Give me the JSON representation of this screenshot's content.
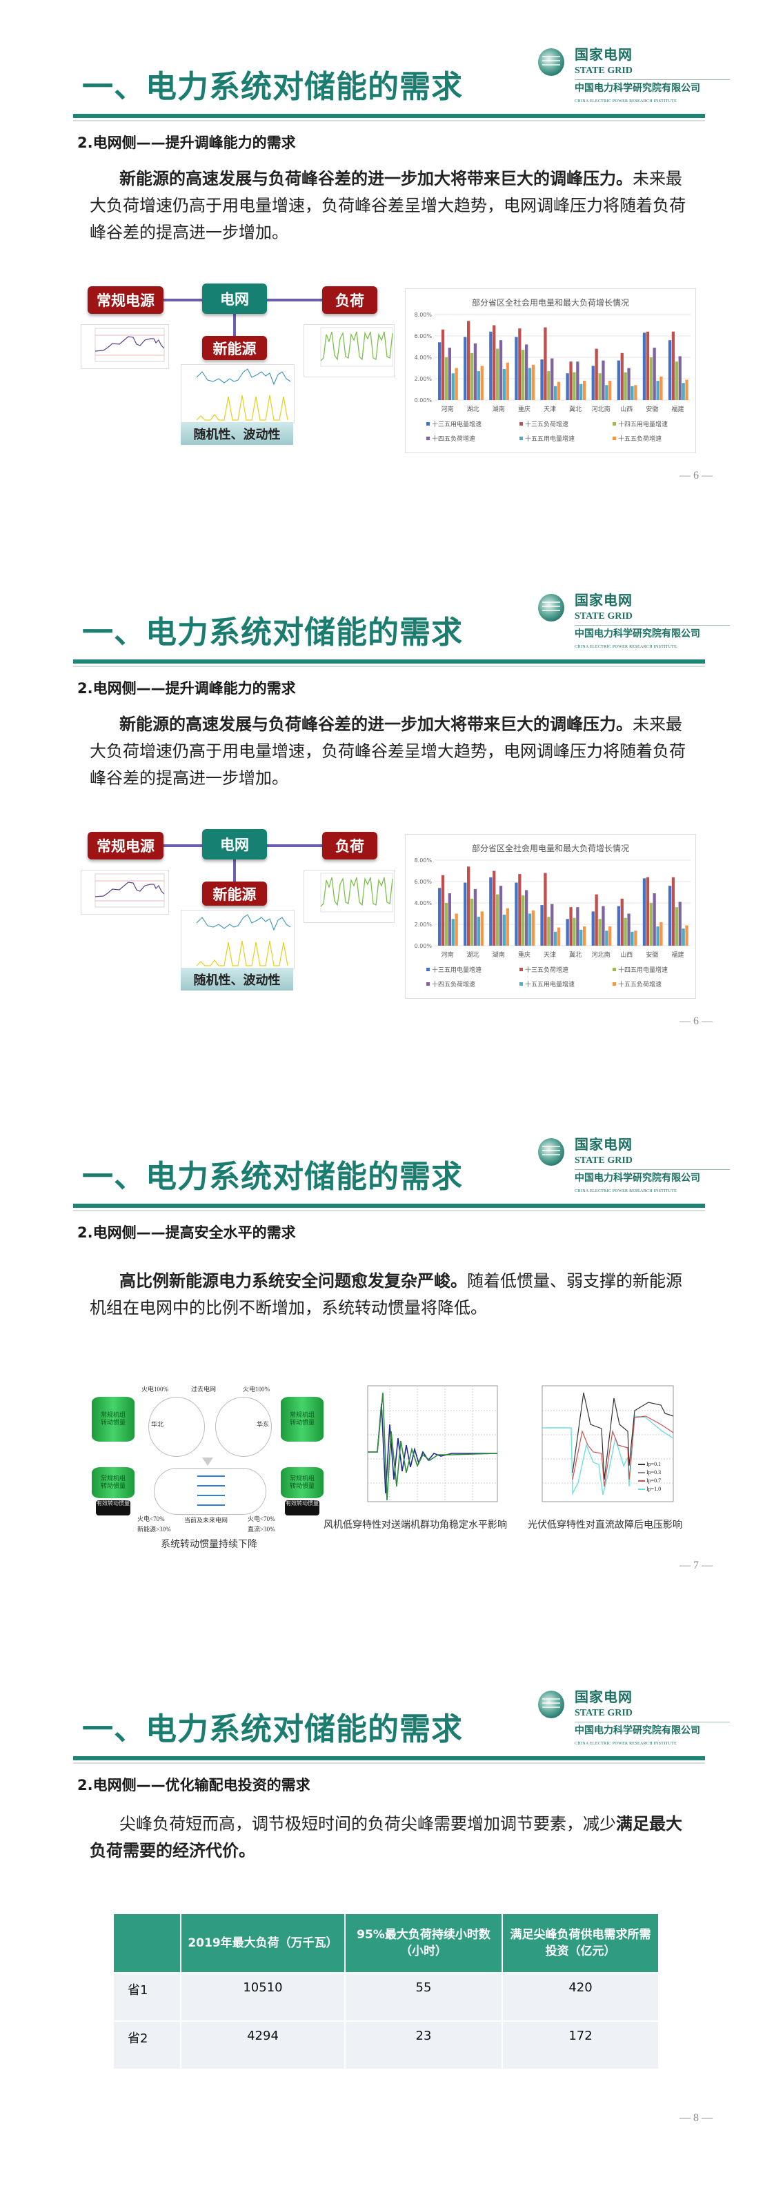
{
  "header": {
    "logo_cn": "国家电网",
    "logo_en": "STATE GRID",
    "institute_cn": "中国电力科学研究院有限公司",
    "institute_en": "CHINA ELECTRIC POWER RESEARCH INSTITUTE",
    "title": "一、电力系统对储能的需求"
  },
  "slides": [
    {
      "subtitle": "2.电网侧——提升调峰能力的需求",
      "para_bold": "新能源的高速发展与负荷峰谷差的进一步加大将带来巨大的调峰压力。",
      "para_rest": "未来最大负荷增速仍高于用电量增速，负荷峰谷差呈增大趋势，电网调峰压力将随着负荷峰谷差的提高进一步增加。",
      "page": "— 6 —"
    },
    {
      "subtitle": "2.电网侧——提升调峰能力的需求",
      "para_bold": "新能源的高速发展与负荷峰谷差的进一步加大将带来巨大的调峰压力。",
      "para_rest": "未来最大负荷增速仍高于用电量增速，负荷峰谷差呈增大趋势，电网调峰压力将随着负荷峰谷差的提高进一步增加。",
      "page": "— 6 —"
    },
    {
      "subtitle": "2.电网侧——提高安全水平的需求",
      "para_bold": "高比例新能源电力系统安全问题愈发复杂严峻。",
      "para_rest": "随着低惯量、弱支撑的新能源机组在电网中的比例不断增加，系统转动惯量将降低。",
      "page": "— 7 —",
      "figures": {
        "inertia": {
          "caption": "系统转动惯量持续下降",
          "thermal_100": "火电100%",
          "past_grid": "过去电网",
          "current_grid": "当前及未来电网",
          "unit_label": "常规机组转动惯量",
          "effective_label": "有效转动惯量",
          "north_china": "华北",
          "east_china": "华东",
          "left_mix": [
            "火电<70%",
            "新能源>30%"
          ],
          "right_mix": [
            "火电<70%",
            "直流>30%"
          ]
        },
        "wind_caption": "风机低穿特性对送端机群功角稳定水平影响",
        "pv_caption": "光伏低穿特性对直流故障后电压影响",
        "pv_legend": [
          "Ip=0.1",
          "Ip=0.3",
          "Ip=0.7",
          "Ip=1.0"
        ]
      }
    },
    {
      "subtitle": "2.电网侧——优化输配电投资的需求",
      "para_rest": "尖峰负荷短而高，调节极短时间的负荷尖峰需要增加调节要素，减少",
      "para_bold": "满足最大负荷需要的经济代价。",
      "page": "— 8 —",
      "table": {
        "headers": [
          "",
          "2019年最大负荷（万千瓦）",
          "95%最大负荷持续小时数（小时）",
          "满足尖峰负荷供电需求所需投资（亿元）"
        ],
        "rows": [
          [
            "省1",
            "10510",
            "55",
            "420"
          ],
          [
            "省2",
            "4294",
            "23",
            "172"
          ]
        ]
      }
    }
  ],
  "diagram": {
    "conventional": "常规电源",
    "grid": "电网",
    "load": "负荷",
    "renewable": "新能源",
    "randomness": "随机性、波动性"
  },
  "colors": {
    "teal": "#1b7d70",
    "red": "#9e1414",
    "table_header": "#2f9b80"
  },
  "chart_data": {
    "type": "bar",
    "title": "部分省区全社会用电量和最大负荷增长情况",
    "categories": [
      "河南",
      "湖北",
      "湖南",
      "重庆",
      "天津",
      "冀北",
      "河北南",
      "山西",
      "安徽",
      "福建"
    ],
    "ylim": [
      0,
      0.08
    ],
    "yticks": [
      "0.00%",
      "2.00%",
      "4.00%",
      "6.00%",
      "8.00%"
    ],
    "grid": true,
    "legend": "bottom",
    "series": [
      {
        "name": "十三五用电量增速",
        "color": "#4472c4",
        "values": [
          0.054,
          0.059,
          0.064,
          0.059,
          0.038,
          0.025,
          0.032,
          0.037,
          0.063,
          0.056
        ]
      },
      {
        "name": "十三五负荷增速",
        "color": "#c0504d",
        "values": [
          0.066,
          0.074,
          0.07,
          0.067,
          0.068,
          0.036,
          0.048,
          0.044,
          0.064,
          0.064
        ]
      },
      {
        "name": "十四五用电量增速",
        "color": "#9bbb59",
        "values": [
          0.04,
          0.044,
          0.048,
          0.047,
          0.027,
          0.026,
          0.025,
          0.026,
          0.04,
          0.036
        ]
      },
      {
        "name": "十四五负荷增速",
        "color": "#8064a2",
        "values": [
          0.049,
          0.053,
          0.056,
          0.052,
          0.039,
          0.036,
          0.037,
          0.03,
          0.049,
          0.041
        ]
      },
      {
        "name": "十五五用电量增速",
        "color": "#4bacc6",
        "values": [
          0.025,
          0.027,
          0.029,
          0.03,
          0.013,
          0.015,
          0.014,
          0.013,
          0.018,
          0.016
        ]
      },
      {
        "name": "十五五负荷增速",
        "color": "#f79646",
        "values": [
          0.03,
          0.032,
          0.035,
          0.033,
          0.017,
          0.018,
          0.018,
          0.014,
          0.022,
          0.019
        ]
      }
    ]
  }
}
